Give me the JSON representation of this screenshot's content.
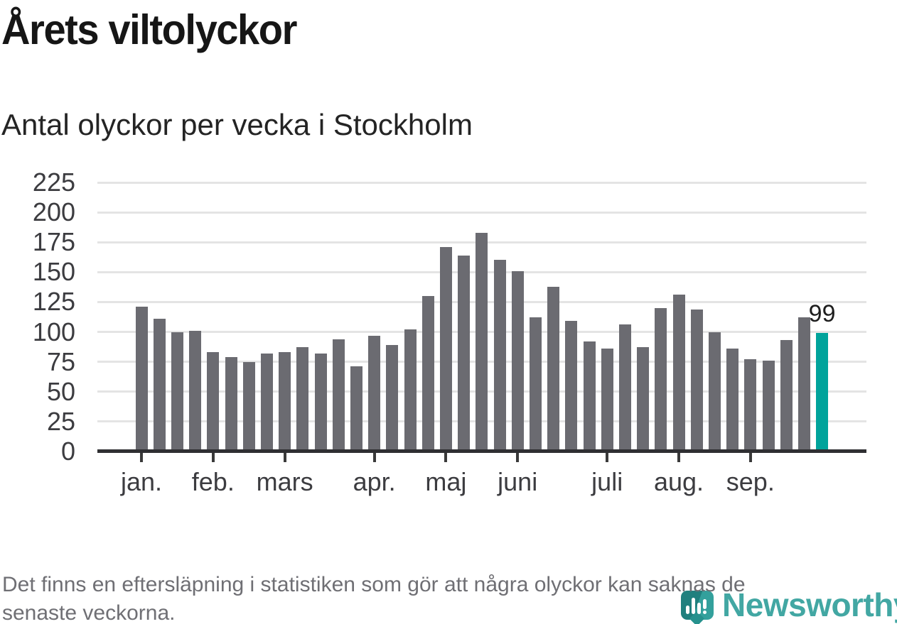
{
  "header": {
    "title": "Årets viltolyckor",
    "subtitle": "Antal olyckor per vecka i Stockholm"
  },
  "chart_data": {
    "type": "bar",
    "title": "Årets viltolyckor",
    "subtitle": "Antal olyckor per vecka i Stockholm",
    "xlabel": "",
    "ylabel": "",
    "ylim": [
      0,
      225
    ],
    "yticks": [
      0,
      25,
      50,
      75,
      100,
      125,
      150,
      175,
      200,
      225
    ],
    "grid": true,
    "legend": null,
    "unit": "olyckor per vecka",
    "categories_note": "weeks 1-39",
    "values": [
      121,
      111,
      100,
      101,
      83,
      79,
      75,
      82,
      83,
      87,
      82,
      94,
      71,
      97,
      89,
      102,
      130,
      171,
      164,
      183,
      160,
      151,
      112,
      138,
      109,
      92,
      86,
      106,
      87,
      120,
      131,
      119,
      100,
      86,
      77,
      76,
      93,
      112,
      99
    ],
    "months": [
      {
        "label": "jan.",
        "start_week": 1
      },
      {
        "label": "feb.",
        "start_week": 5
      },
      {
        "label": "mars",
        "start_week": 9
      },
      {
        "label": "apr.",
        "start_week": 14
      },
      {
        "label": "maj",
        "start_week": 18
      },
      {
        "label": "juni",
        "start_week": 22
      },
      {
        "label": "juli",
        "start_week": 27
      },
      {
        "label": "aug.",
        "start_week": 31
      },
      {
        "label": "sep.",
        "start_week": 35
      }
    ],
    "bar_color": "#6b6b71",
    "highlight_color": "#00a39b",
    "highlight_index": 38,
    "highlight_label": "99"
  },
  "footer": {
    "note_lines": [
      "Det finns en eftersläpning i statistiken som gör att några olyckor kan saknas de",
      "senaste veckorna."
    ],
    "brand": "Newsworthy"
  }
}
